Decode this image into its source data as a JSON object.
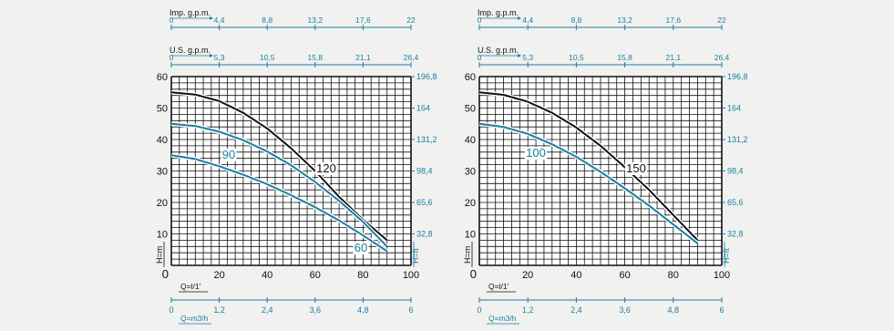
{
  "colors": {
    "background": "#f1f1f0",
    "grid": "#111111",
    "accent": "#1a7fa0",
    "curve_dark": "#111111",
    "curve_blue": "#1a7fa0"
  },
  "chart_data": [
    {
      "type": "line",
      "title": "",
      "xlabel": "Q=l/1'",
      "ylabel": "H=m",
      "y2label": "H=ft",
      "x_ticks": [
        20,
        40,
        60,
        80,
        100
      ],
      "x_origin_label": "0",
      "y_ticks": [
        10,
        20,
        30,
        40,
        50,
        60
      ],
      "y_origin_label": "0",
      "xlim": [
        0,
        100
      ],
      "ylim": [
        0,
        60
      ],
      "grid": true,
      "ft_ticks": [
        {
          "h": 10,
          "label": "32,8"
        },
        {
          "h": 20,
          "label": "65,6"
        },
        {
          "h": 30,
          "label": "98,4"
        },
        {
          "h": 40,
          "label": "131,2"
        },
        {
          "h": 50,
          "label": "164"
        },
        {
          "h": 60,
          "label": "196,8"
        }
      ],
      "top_axes": [
        {
          "label": "Imp. g.p.m.",
          "ticks": [
            "0",
            "4,4",
            "8,8",
            "13,2",
            "17,6",
            "22"
          ]
        },
        {
          "label": "U.S. g.p.m.",
          "ticks": [
            "0",
            "5,3",
            "10,5",
            "15,8",
            "21,1",
            "26,4"
          ]
        }
      ],
      "bottom_axis": {
        "label": "Q=m3/h",
        "ticks": [
          "0",
          "1,2",
          "2,4",
          "3,6",
          "4,8",
          "6"
        ]
      },
      "series": [
        {
          "name": "120",
          "color": "#111111",
          "x": [
            0,
            10,
            20,
            30,
            40,
            50,
            60,
            70,
            80,
            90
          ],
          "y": [
            55,
            54.3,
            52.2,
            48.5,
            43.5,
            37.2,
            30,
            21.8,
            14.5,
            8
          ]
        },
        {
          "name": "90",
          "color": "#1a7fa0",
          "x": [
            0,
            10,
            20,
            30,
            40,
            50,
            60,
            70,
            80,
            90
          ],
          "y": [
            45,
            44.3,
            42.5,
            39.8,
            36.2,
            31.8,
            26.5,
            20.5,
            13.8,
            6
          ]
        },
        {
          "name": "60",
          "color": "#1a7fa0",
          "x": [
            0,
            10,
            20,
            30,
            40,
            50,
            60,
            70,
            80,
            90
          ],
          "y": [
            35,
            33.8,
            31.5,
            28.8,
            25.8,
            22.3,
            18.5,
            14.3,
            9.5,
            4.5
          ]
        }
      ]
    },
    {
      "type": "line",
      "title": "",
      "xlabel": "Q=l/1'",
      "ylabel": "H=m",
      "y2label": "H=ft",
      "x_ticks": [
        20,
        40,
        60,
        80,
        100
      ],
      "x_origin_label": "0",
      "y_ticks": [
        10,
        20,
        30,
        40,
        50,
        60
      ],
      "y_origin_label": "0",
      "xlim": [
        0,
        100
      ],
      "ylim": [
        0,
        60
      ],
      "grid": true,
      "ft_ticks": [
        {
          "h": 10,
          "label": "32,8"
        },
        {
          "h": 20,
          "label": "65,6"
        },
        {
          "h": 30,
          "label": "98,4"
        },
        {
          "h": 40,
          "label": "131,2"
        },
        {
          "h": 50,
          "label": "164"
        },
        {
          "h": 60,
          "label": "196,8"
        }
      ],
      "top_axes": [
        {
          "label": "Imp. g.p.m.",
          "ticks": [
            "0",
            "4,4",
            "8,8",
            "13,2",
            "17,6",
            "22"
          ]
        },
        {
          "label": "U.S. g.p.m.",
          "ticks": [
            "0",
            "5,3",
            "10,5",
            "15,8",
            "21,1",
            "26,4"
          ]
        }
      ],
      "bottom_axis": {
        "label": "Q=m3/h",
        "ticks": [
          "0",
          "1,2",
          "2,4",
          "3,6",
          "4,8",
          "6"
        ]
      },
      "series": [
        {
          "name": "150",
          "color": "#111111",
          "x": [
            0,
            10,
            20,
            30,
            40,
            50,
            60,
            70,
            80,
            90
          ],
          "y": [
            55,
            54.2,
            52,
            48.5,
            43.8,
            38,
            31.2,
            24,
            16,
            8
          ]
        },
        {
          "name": "100",
          "color": "#1a7fa0",
          "x": [
            0,
            10,
            20,
            30,
            40,
            50,
            60,
            70,
            80,
            90
          ],
          "y": [
            45,
            44,
            41.8,
            38.5,
            34.5,
            29.7,
            24.5,
            19,
            13,
            7
          ]
        }
      ]
    }
  ]
}
